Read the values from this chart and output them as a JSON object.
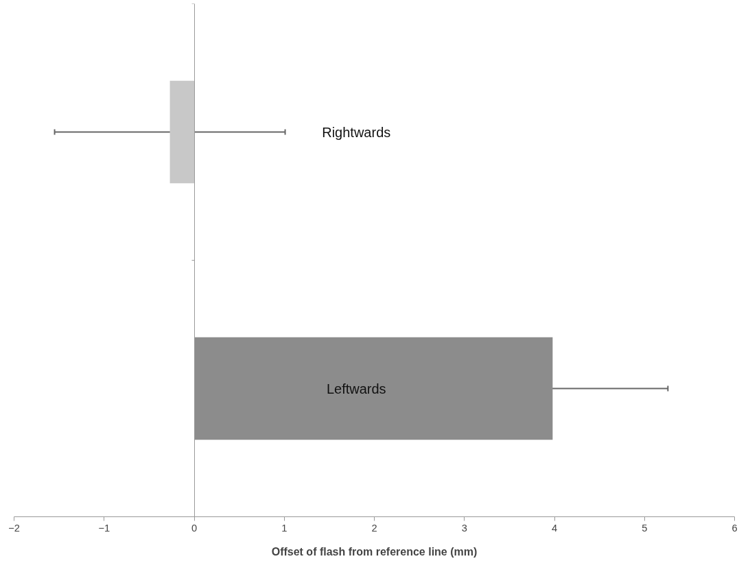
{
  "chart_data": {
    "type": "bar",
    "orientation": "horizontal",
    "categories": [
      "Rightwards",
      "Leftwards"
    ],
    "values": [
      -0.27,
      3.98
    ],
    "colors": [
      "#c8c8c8",
      "#8c8c8c"
    ],
    "errors": [
      1.28,
      1.28
    ],
    "xlabel": "Offset of flash from reference line (mm)",
    "xlim": [
      -2,
      6
    ],
    "xticks": [
      -2,
      -1,
      0,
      1,
      2,
      3,
      4,
      5,
      6
    ]
  }
}
